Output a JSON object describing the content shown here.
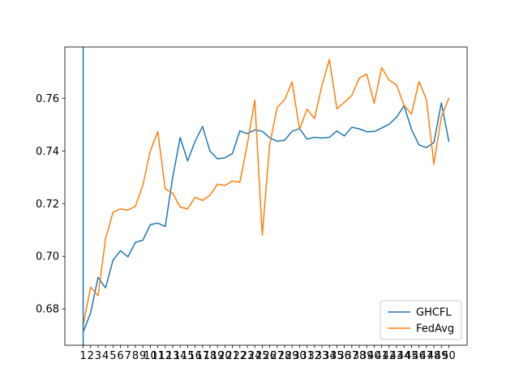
{
  "chart_data": {
    "type": "line",
    "title": "",
    "xlabel": "",
    "ylabel": "",
    "x": [
      1,
      2,
      3,
      4,
      5,
      6,
      7,
      8,
      9,
      10,
      11,
      12,
      13,
      14,
      15,
      16,
      17,
      18,
      19,
      20,
      21,
      22,
      23,
      24,
      25,
      26,
      27,
      28,
      29,
      30,
      31,
      32,
      33,
      34,
      35,
      36,
      37,
      38,
      39,
      40,
      41,
      42,
      43,
      44,
      45,
      46,
      47,
      48,
      49,
      50
    ],
    "xlim": [
      -1.45,
      52.45
    ],
    "ylim": [
      0.6662,
      0.7795
    ],
    "yticks": [
      0.68,
      0.7,
      0.72,
      0.74,
      0.76
    ],
    "ytick_labels": [
      "0.68",
      "0.70",
      "0.72",
      "0.74",
      "0.76"
    ],
    "xtick_labels": [
      "1",
      "2",
      "3",
      "4",
      "5",
      "6",
      "7",
      "8",
      "9",
      "10",
      "11",
      "12",
      "13",
      "14",
      "15",
      "16",
      "17",
      "18",
      "19",
      "20",
      "21",
      "22",
      "23",
      "24",
      "25",
      "26",
      "27",
      "28",
      "29",
      "30",
      "31",
      "32",
      "33",
      "34",
      "35",
      "36",
      "37",
      "38",
      "39",
      "40",
      "41",
      "42",
      "43",
      "44",
      "45",
      "46",
      "47",
      "48",
      "49",
      "50"
    ],
    "grid": false,
    "legend_position": "lower right",
    "vertical_line_x": 1,
    "series": [
      {
        "name": "GHCFL",
        "color": "#1f77b4",
        "values": [
          0.6712,
          0.6785,
          0.692,
          0.688,
          0.6985,
          0.7021,
          0.6998,
          0.7053,
          0.7061,
          0.712,
          0.7126,
          0.7113,
          0.73,
          0.7451,
          0.7362,
          0.7437,
          0.7493,
          0.7399,
          0.737,
          0.7374,
          0.739,
          0.7476,
          0.7466,
          0.748,
          0.7475,
          0.745,
          0.7437,
          0.7441,
          0.7475,
          0.7485,
          0.7445,
          0.7452,
          0.7449,
          0.7452,
          0.7476,
          0.7457,
          0.749,
          0.7484,
          0.7473,
          0.7474,
          0.7487,
          0.7502,
          0.7528,
          0.7572,
          0.7482,
          0.7423,
          0.7413,
          0.7432,
          0.7583,
          0.7437
        ]
      },
      {
        "name": "FedAvg",
        "color": "#ff7f0e",
        "values": [
          0.6738,
          0.6883,
          0.685,
          0.7067,
          0.7167,
          0.718,
          0.7175,
          0.719,
          0.727,
          0.74,
          0.7474,
          0.7256,
          0.724,
          0.7187,
          0.718,
          0.7224,
          0.7212,
          0.7232,
          0.7274,
          0.7269,
          0.7286,
          0.7281,
          0.7425,
          0.7593,
          0.708,
          0.7425,
          0.7566,
          0.7595,
          0.7662,
          0.7482,
          0.7559,
          0.7523,
          0.7649,
          0.7748,
          0.756,
          0.7585,
          0.7611,
          0.7677,
          0.7692,
          0.7581,
          0.7717,
          0.7669,
          0.7651,
          0.7573,
          0.754,
          0.7664,
          0.7596,
          0.735,
          0.753,
          0.76
        ]
      }
    ]
  }
}
